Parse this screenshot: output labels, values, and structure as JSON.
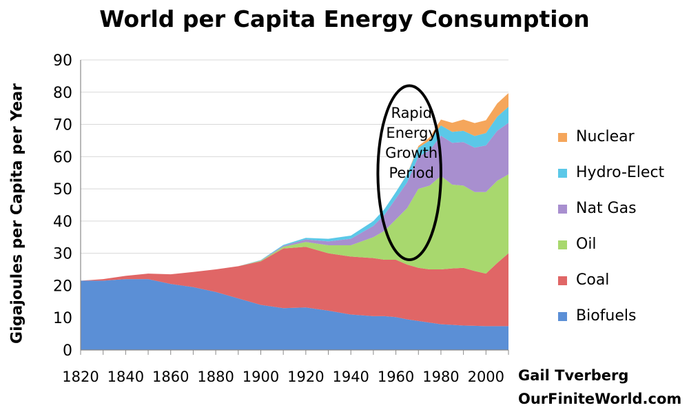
{
  "chart_data": {
    "type": "area",
    "stacked": true,
    "title": "World per Capita Energy Consumption",
    "xlabel": "",
    "ylabel": "Gigajoules per Capita per Year",
    "xlim": [
      1820,
      2010
    ],
    "ylim": [
      0,
      90
    ],
    "yticks": [
      0,
      10,
      20,
      30,
      40,
      50,
      60,
      70,
      80,
      90
    ],
    "xticks": [
      1820,
      1840,
      1860,
      1880,
      1900,
      1920,
      1940,
      1960,
      1980,
      2000
    ],
    "grid": "horizontal",
    "legend_position": "right",
    "x": [
      1820,
      1830,
      1840,
      1850,
      1860,
      1870,
      1880,
      1890,
      1900,
      1910,
      1920,
      1930,
      1940,
      1950,
      1955,
      1960,
      1965,
      1970,
      1975,
      1980,
      1985,
      1990,
      1995,
      2000,
      2005,
      2010
    ],
    "series": [
      {
        "name": "Biofuels",
        "color": "#5b8fd6",
        "values": [
          21.5,
          21.5,
          22.0,
          22.0,
          20.5,
          19.5,
          18.0,
          16.0,
          14.0,
          13.0,
          13.2,
          12.2,
          11.0,
          10.5,
          10.5,
          10.2,
          9.5,
          9.0,
          8.5,
          8.0,
          7.8,
          7.6,
          7.5,
          7.4,
          7.4,
          7.4
        ]
      },
      {
        "name": "Coal",
        "color": "#e06666",
        "values": [
          0.0,
          0.5,
          1.0,
          1.7,
          3.0,
          4.7,
          7.0,
          10.0,
          13.5,
          18.5,
          18.8,
          17.8,
          18.0,
          18.0,
          17.5,
          17.8,
          17.0,
          16.5,
          16.5,
          17.0,
          17.5,
          17.9,
          17.0,
          16.3,
          19.6,
          22.6
        ]
      },
      {
        "name": "Oil",
        "color": "#a8d86e",
        "values": [
          0.0,
          0.0,
          0.0,
          0.0,
          0.0,
          0.0,
          0.0,
          0.0,
          0.2,
          0.5,
          1.5,
          2.5,
          3.5,
          6.5,
          9.0,
          12.5,
          17.5,
          24.5,
          26.0,
          29.0,
          26.0,
          25.5,
          24.5,
          25.3,
          25.5,
          24.5
        ]
      },
      {
        "name": "Nat Gas",
        "color": "#a88fcf",
        "values": [
          0.0,
          0.0,
          0.0,
          0.0,
          0.0,
          0.0,
          0.0,
          0.0,
          0.1,
          0.3,
          0.8,
          1.2,
          2.0,
          3.5,
          5.0,
          6.5,
          8.0,
          10.0,
          11.0,
          12.5,
          13.0,
          13.5,
          13.8,
          14.5,
          15.5,
          16.0
        ]
      },
      {
        "name": "Hydro-Elect",
        "color": "#5bc8e8",
        "values": [
          0.0,
          0.0,
          0.0,
          0.0,
          0.0,
          0.0,
          0.0,
          0.0,
          0.1,
          0.3,
          0.5,
          0.8,
          1.0,
          1.5,
          1.8,
          2.0,
          2.5,
          2.8,
          3.0,
          3.2,
          3.4,
          3.5,
          3.6,
          3.8,
          4.4,
          5.0
        ]
      },
      {
        "name": "Nuclear",
        "color": "#f5a65b",
        "values": [
          0.0,
          0.0,
          0.0,
          0.0,
          0.0,
          0.0,
          0.0,
          0.0,
          0.0,
          0.0,
          0.0,
          0.0,
          0.0,
          0.0,
          0.0,
          0.0,
          0.1,
          0.5,
          1.0,
          1.8,
          2.8,
          3.5,
          4.0,
          4.0,
          4.1,
          4.2
        ]
      }
    ],
    "annotations": [
      {
        "text_lines": [
          "Rapid",
          "Energy",
          "Growth",
          "Period"
        ],
        "shape": "ellipse",
        "center": [
          1966,
          55
        ],
        "radius_x": 14,
        "radius_y": 27
      }
    ]
  },
  "credit": {
    "line1": "Gail Tverberg",
    "line2": "OurFiniteWorld.com"
  }
}
